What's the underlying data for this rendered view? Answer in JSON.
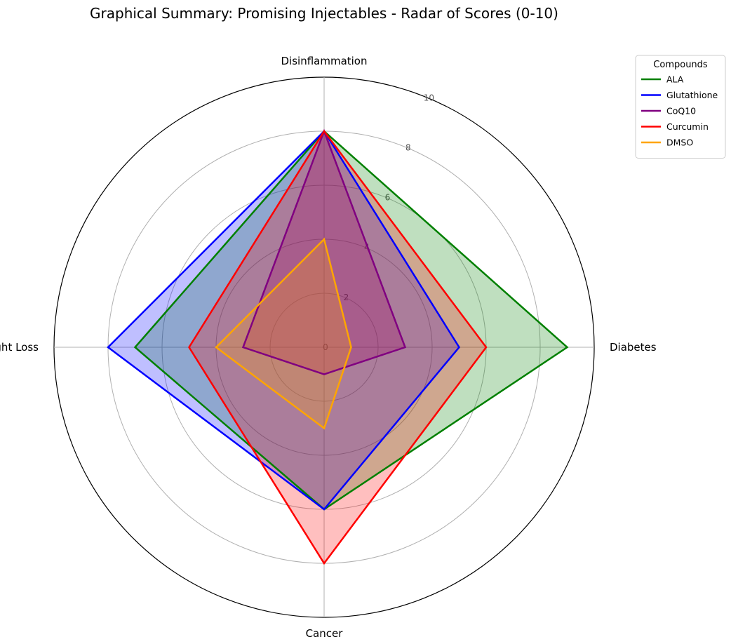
{
  "chart_data": {
    "type": "radar",
    "title": "Graphical Summary: Promising Injectables - Radar of Scores (0-10)",
    "axes": [
      "Disinflammation",
      "Diabetes",
      "Cancer",
      "Weight Loss"
    ],
    "rlim": [
      0,
      10
    ],
    "r_ticks": [
      0,
      2,
      4,
      6,
      8,
      10
    ],
    "r_tick_labels": [
      "0",
      "2",
      "4",
      "6",
      "8",
      "10"
    ],
    "grid": true,
    "legend": {
      "title": "Compounds",
      "placement": "top-right"
    },
    "series": [
      {
        "name": "ALA",
        "color": "#008000",
        "values": [
          8,
          9,
          6,
          7
        ]
      },
      {
        "name": "Glutathione",
        "color": "#0000ff",
        "values": [
          8,
          5,
          6,
          8
        ]
      },
      {
        "name": "CoQ10",
        "color": "#800080",
        "values": [
          8,
          3,
          1,
          3
        ]
      },
      {
        "name": "Curcumin",
        "color": "#ff0000",
        "values": [
          8,
          6,
          8,
          5
        ]
      },
      {
        "name": "DMSO",
        "color": "#ffa500",
        "values": [
          4,
          1,
          3,
          4
        ]
      }
    ]
  }
}
